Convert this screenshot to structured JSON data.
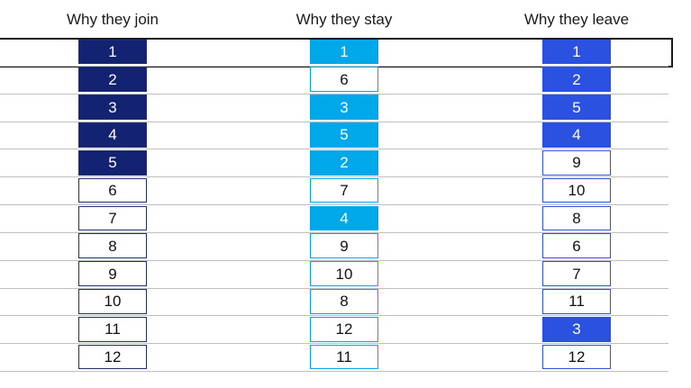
{
  "chart_data": {
    "type": "table",
    "title": "",
    "highlighted_values": [
      1,
      2,
      3,
      4,
      5
    ],
    "row1_outlined": true,
    "grid_color": "#BFBFBF",
    "outline_color": "#1A1A1A",
    "text_color_filled": "#FFFFFF",
    "text_color_default": "#111111",
    "columns": [
      {
        "header": "Why they join",
        "fill_color": "#132271",
        "border_color": "#1F2E6E",
        "values": [
          1,
          2,
          3,
          4,
          5,
          6,
          7,
          8,
          9,
          10,
          11,
          12
        ]
      },
      {
        "header": "Why they stay",
        "fill_color": "#00A8EA",
        "border_color": "#00A8EA",
        "values": [
          1,
          6,
          3,
          5,
          2,
          7,
          4,
          9,
          10,
          8,
          12,
          11
        ]
      },
      {
        "header": "Why they leave",
        "fill_color": "#2B51E0",
        "border_color": "#2B51E0",
        "values": [
          1,
          2,
          5,
          4,
          9,
          10,
          8,
          6,
          7,
          11,
          3,
          12
        ]
      }
    ]
  }
}
